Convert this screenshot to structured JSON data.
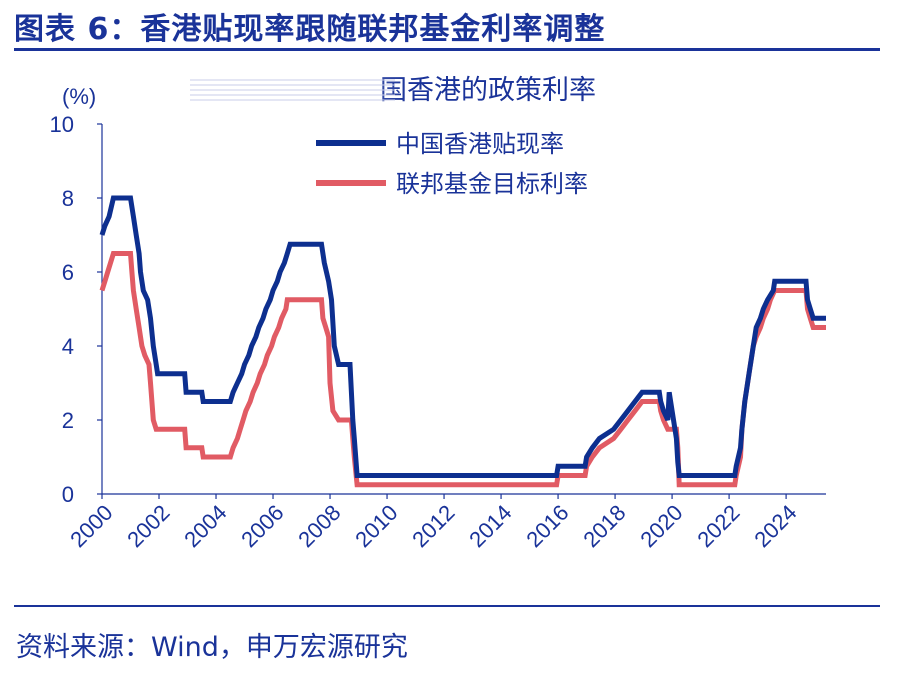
{
  "header": {
    "title": "图表 6：香港贴现率跟随联邦基金利率调整"
  },
  "footer": {
    "source": "资料来源：Wind，申万宏源研究"
  },
  "colors": {
    "accent": "#1a3399",
    "hk": "#0d2f8f",
    "fed": "#e15b64"
  },
  "chart_data": {
    "type": "line",
    "title": "",
    "subtitle": "国香港的政策利率",
    "ylabel": "(%)",
    "xlabel": "",
    "xlim": [
      2000,
      2025.4
    ],
    "ylim": [
      0,
      10
    ],
    "yticks": [
      "0",
      "2",
      "4",
      "6",
      "8",
      "10"
    ],
    "xticks": [
      "2000",
      "2002",
      "2004",
      "2006",
      "2008",
      "2010",
      "2012",
      "2014",
      "2016",
      "2018",
      "2020",
      "2022",
      "2024"
    ],
    "legend_position": "top-center",
    "grid": false,
    "series": [
      {
        "name": "中国香港贴现率",
        "points": [
          [
            2000.0,
            7.0
          ],
          [
            2000.1,
            7.25
          ],
          [
            2000.25,
            7.5
          ],
          [
            2000.4,
            8.0
          ],
          [
            2001.0,
            8.0
          ],
          [
            2001.1,
            7.5
          ],
          [
            2001.2,
            7.0
          ],
          [
            2001.3,
            6.5
          ],
          [
            2001.35,
            6.0
          ],
          [
            2001.45,
            5.5
          ],
          [
            2001.6,
            5.25
          ],
          [
            2001.7,
            4.75
          ],
          [
            2001.8,
            4.0
          ],
          [
            2001.9,
            3.5
          ],
          [
            2001.95,
            3.25
          ],
          [
            2002.9,
            3.25
          ],
          [
            2002.95,
            2.75
          ],
          [
            2003.5,
            2.75
          ],
          [
            2003.55,
            2.5
          ],
          [
            2004.5,
            2.5
          ],
          [
            2004.6,
            2.75
          ],
          [
            2004.75,
            3.0
          ],
          [
            2004.9,
            3.25
          ],
          [
            2005.0,
            3.5
          ],
          [
            2005.15,
            3.75
          ],
          [
            2005.25,
            4.0
          ],
          [
            2005.4,
            4.25
          ],
          [
            2005.5,
            4.5
          ],
          [
            2005.65,
            4.75
          ],
          [
            2005.75,
            5.0
          ],
          [
            2005.9,
            5.25
          ],
          [
            2006.0,
            5.5
          ],
          [
            2006.15,
            5.75
          ],
          [
            2006.25,
            6.0
          ],
          [
            2006.4,
            6.25
          ],
          [
            2006.5,
            6.5
          ],
          [
            2006.6,
            6.75
          ],
          [
            2007.7,
            6.75
          ],
          [
            2007.8,
            6.25
          ],
          [
            2007.95,
            5.75
          ],
          [
            2008.05,
            5.25
          ],
          [
            2008.15,
            4.0
          ],
          [
            2008.3,
            3.5
          ],
          [
            2008.7,
            3.5
          ],
          [
            2008.8,
            2.0
          ],
          [
            2008.85,
            1.5
          ],
          [
            2008.95,
            0.5
          ],
          [
            2015.95,
            0.5
          ],
          [
            2016.0,
            0.75
          ],
          [
            2016.95,
            0.75
          ],
          [
            2017.0,
            1.0
          ],
          [
            2017.2,
            1.25
          ],
          [
            2017.45,
            1.5
          ],
          [
            2017.95,
            1.75
          ],
          [
            2018.2,
            2.0
          ],
          [
            2018.45,
            2.25
          ],
          [
            2018.7,
            2.5
          ],
          [
            2018.95,
            2.75
          ],
          [
            2019.55,
            2.75
          ],
          [
            2019.6,
            2.5
          ],
          [
            2019.7,
            2.25
          ],
          [
            2019.85,
            2.0
          ],
          [
            2019.9,
            2.75
          ],
          [
            2020.15,
            1.5
          ],
          [
            2020.2,
            0.86
          ],
          [
            2020.25,
            0.5
          ],
          [
            2022.2,
            0.5
          ],
          [
            2022.25,
            0.75
          ],
          [
            2022.4,
            1.25
          ],
          [
            2022.45,
            1.75
          ],
          [
            2022.55,
            2.5
          ],
          [
            2022.7,
            3.25
          ],
          [
            2022.85,
            4.0
          ],
          [
            2022.95,
            4.5
          ],
          [
            2023.1,
            4.75
          ],
          [
            2023.2,
            5.0
          ],
          [
            2023.35,
            5.25
          ],
          [
            2023.55,
            5.5
          ],
          [
            2023.6,
            5.75
          ],
          [
            2024.7,
            5.75
          ],
          [
            2024.75,
            5.25
          ],
          [
            2024.85,
            5.0
          ],
          [
            2024.95,
            4.75
          ],
          [
            2025.4,
            4.75
          ]
        ]
      },
      {
        "name": "联邦基金目标利率",
        "points": [
          [
            2000.0,
            5.5
          ],
          [
            2000.1,
            5.75
          ],
          [
            2000.2,
            6.0
          ],
          [
            2000.4,
            6.5
          ],
          [
            2001.0,
            6.5
          ],
          [
            2001.05,
            6.0
          ],
          [
            2001.1,
            5.5
          ],
          [
            2001.2,
            5.0
          ],
          [
            2001.3,
            4.5
          ],
          [
            2001.4,
            4.0
          ],
          [
            2001.5,
            3.75
          ],
          [
            2001.65,
            3.5
          ],
          [
            2001.7,
            3.0
          ],
          [
            2001.75,
            2.5
          ],
          [
            2001.8,
            2.0
          ],
          [
            2001.9,
            1.75
          ],
          [
            2002.9,
            1.75
          ],
          [
            2002.95,
            1.25
          ],
          [
            2003.5,
            1.25
          ],
          [
            2003.55,
            1.0
          ],
          [
            2004.5,
            1.0
          ],
          [
            2004.6,
            1.25
          ],
          [
            2004.75,
            1.5
          ],
          [
            2004.85,
            1.75
          ],
          [
            2004.95,
            2.0
          ],
          [
            2005.05,
            2.25
          ],
          [
            2005.2,
            2.5
          ],
          [
            2005.3,
            2.75
          ],
          [
            2005.45,
            3.0
          ],
          [
            2005.55,
            3.25
          ],
          [
            2005.7,
            3.5
          ],
          [
            2005.8,
            3.75
          ],
          [
            2005.95,
            4.0
          ],
          [
            2006.05,
            4.25
          ],
          [
            2006.2,
            4.5
          ],
          [
            2006.3,
            4.75
          ],
          [
            2006.45,
            5.0
          ],
          [
            2006.5,
            5.25
          ],
          [
            2007.7,
            5.25
          ],
          [
            2007.75,
            4.75
          ],
          [
            2007.85,
            4.5
          ],
          [
            2007.95,
            4.25
          ],
          [
            2008.0,
            3.0
          ],
          [
            2008.1,
            2.25
          ],
          [
            2008.3,
            2.0
          ],
          [
            2008.75,
            2.0
          ],
          [
            2008.8,
            1.5
          ],
          [
            2008.85,
            1.0
          ],
          [
            2008.95,
            0.25
          ],
          [
            2015.95,
            0.25
          ],
          [
            2016.0,
            0.5
          ],
          [
            2016.95,
            0.5
          ],
          [
            2017.0,
            0.75
          ],
          [
            2017.2,
            1.0
          ],
          [
            2017.45,
            1.25
          ],
          [
            2017.95,
            1.5
          ],
          [
            2018.2,
            1.75
          ],
          [
            2018.45,
            2.0
          ],
          [
            2018.7,
            2.25
          ],
          [
            2018.95,
            2.5
          ],
          [
            2019.55,
            2.5
          ],
          [
            2019.6,
            2.25
          ],
          [
            2019.7,
            2.0
          ],
          [
            2019.85,
            1.75
          ],
          [
            2020.15,
            1.75
          ],
          [
            2020.2,
            1.25
          ],
          [
            2020.25,
            0.25
          ],
          [
            2022.2,
            0.25
          ],
          [
            2022.25,
            0.5
          ],
          [
            2022.4,
            1.0
          ],
          [
            2022.45,
            1.75
          ],
          [
            2022.55,
            2.5
          ],
          [
            2022.7,
            3.25
          ],
          [
            2022.85,
            4.0
          ],
          [
            2022.95,
            4.25
          ],
          [
            2023.1,
            4.5
          ],
          [
            2023.2,
            4.75
          ],
          [
            2023.35,
            5.0
          ],
          [
            2023.45,
            5.25
          ],
          [
            2023.6,
            5.5
          ],
          [
            2024.7,
            5.5
          ],
          [
            2024.75,
            5.0
          ],
          [
            2024.85,
            4.75
          ],
          [
            2024.95,
            4.5
          ],
          [
            2025.4,
            4.5
          ]
        ]
      }
    ]
  }
}
